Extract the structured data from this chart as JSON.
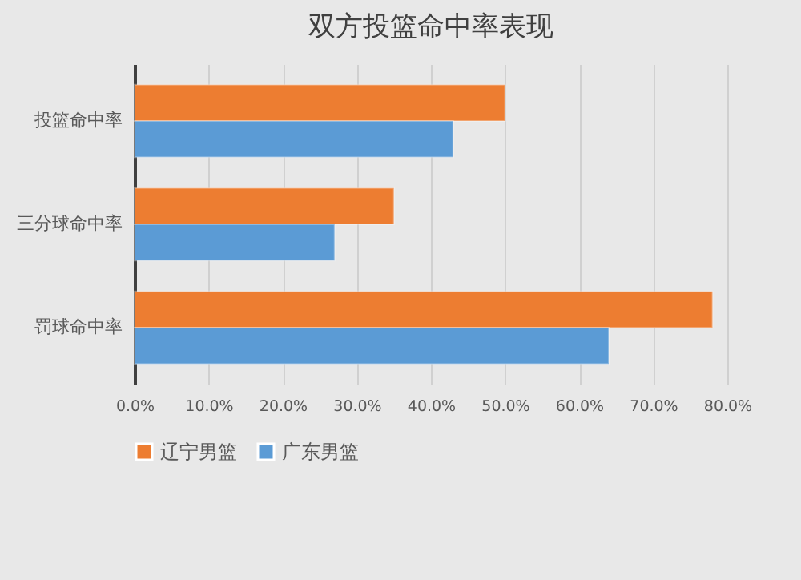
{
  "chart_data": {
    "type": "bar",
    "orientation": "horizontal",
    "title": "双方投篮命中率表现",
    "categories": [
      "投篮命中率",
      "三分球命中率",
      "罚球命中率"
    ],
    "series": [
      {
        "name": "辽宁男篮",
        "color": "#ed7d31",
        "values": [
          50,
          35,
          78
        ]
      },
      {
        "name": "广东男篮",
        "color": "#5b9bd5",
        "values": [
          43,
          27,
          64
        ]
      }
    ],
    "xlim": [
      0,
      80
    ],
    "xticks": [
      {
        "value": 0,
        "label": "0.0%"
      },
      {
        "value": 10,
        "label": "10.0%"
      },
      {
        "value": 20,
        "label": "20.0%"
      },
      {
        "value": 30,
        "label": "30.0%"
      },
      {
        "value": 40,
        "label": "40.0%"
      },
      {
        "value": 50,
        "label": "50.0%"
      },
      {
        "value": 60,
        "label": "60.0%"
      },
      {
        "value": 70,
        "label": "70.0%"
      },
      {
        "value": 80,
        "label": "80.0%"
      }
    ],
    "grid": "x",
    "legend": "bottom"
  }
}
